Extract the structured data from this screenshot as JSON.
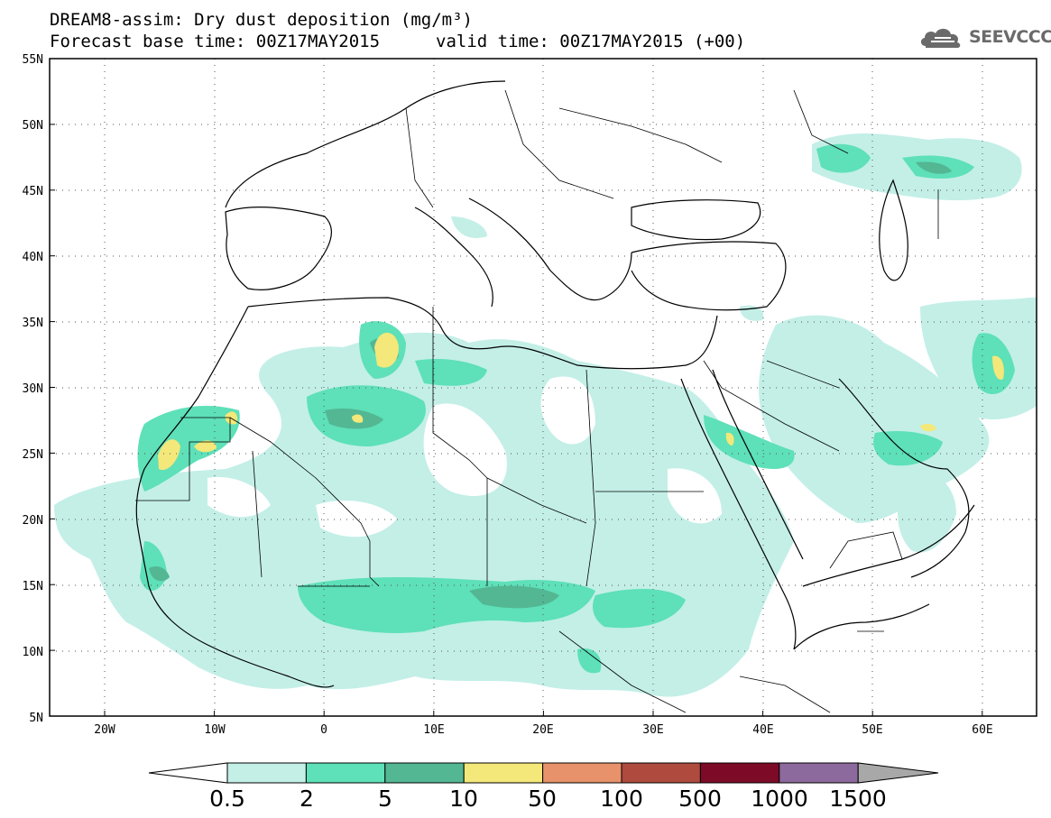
{
  "header": {
    "title_line1": "DREAM8-assim: Dry dust deposition (mg/m³)",
    "title_line2": "Forecast base time: 00Z17MAY2015",
    "title_line3": "valid time: 00Z17MAY2015 (+00)"
  },
  "logo": {
    "text": "SEEVCCC",
    "icon": "cloud-logo-icon"
  },
  "map": {
    "lat_labels": [
      "55N",
      "50N",
      "45N",
      "40N",
      "35N",
      "30N",
      "25N",
      "20N",
      "15N",
      "10N",
      "5N"
    ],
    "lon_labels": [
      "20W",
      "10W",
      "0",
      "10E",
      "20E",
      "30E",
      "40E",
      "50E",
      "60E"
    ],
    "lon_range": [
      -25,
      65
    ],
    "lat_range": [
      5,
      55
    ]
  },
  "legend": {
    "labels": [
      "0.5",
      "2",
      "5",
      "10",
      "50",
      "100",
      "500",
      "1000",
      "1500"
    ],
    "colors": [
      "#c3efe7",
      "#5ee0b8",
      "#53b793",
      "#f3e879",
      "#e7926a",
      "#ae4a3e",
      "#7d0a26",
      "#8d6a9d"
    ],
    "under_color": "#ffffff",
    "over_color": "#a8a8a8"
  },
  "colors": {
    "land_light": "#c3efe7",
    "land_mid": "#5ee0b8",
    "land_dark": "#53b793",
    "hot": "#f3e879"
  }
}
